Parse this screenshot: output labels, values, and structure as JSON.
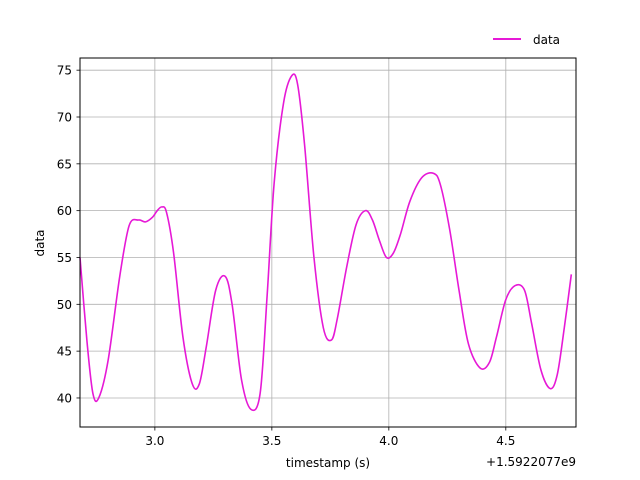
{
  "chart_data": {
    "type": "line",
    "xlabel": "timestamp (s)",
    "ylabel": "data",
    "x_offset_label": "+1.5922077e9",
    "xlim": [
      2.68,
      4.8
    ],
    "ylim": [
      36.9,
      76.3
    ],
    "x_ticks": [
      3.0,
      3.5,
      4.0,
      4.5
    ],
    "x_tick_labels": [
      "3.0",
      "3.5",
      "4.0",
      "4.5"
    ],
    "y_ticks": [
      40,
      45,
      50,
      55,
      60,
      65,
      70,
      75
    ],
    "y_tick_labels": [
      "40",
      "45",
      "50",
      "55",
      "60",
      "65",
      "70",
      "75"
    ],
    "grid": true,
    "legend_position": "top-right",
    "series": [
      {
        "name": "data",
        "color": "#e619d6",
        "x": [
          2.68,
          2.71,
          2.735,
          2.76,
          2.8,
          2.85,
          2.89,
          2.93,
          2.96,
          2.99,
          3.01,
          3.03,
          3.05,
          3.08,
          3.12,
          3.16,
          3.19,
          3.22,
          3.26,
          3.3,
          3.33,
          3.37,
          3.41,
          3.45,
          3.48,
          3.51,
          3.55,
          3.585,
          3.61,
          3.64,
          3.68,
          3.72,
          3.755,
          3.78,
          3.82,
          3.86,
          3.9,
          3.93,
          3.96,
          3.99,
          4.02,
          4.05,
          4.09,
          4.14,
          4.19,
          4.22,
          4.26,
          4.3,
          4.34,
          4.39,
          4.43,
          4.46,
          4.5,
          4.54,
          4.58,
          4.61,
          4.65,
          4.69,
          4.72,
          4.75,
          4.78
        ],
        "y": [
          55.0,
          46.0,
          40.5,
          40.0,
          44.0,
          53.0,
          58.4,
          59.0,
          58.8,
          59.3,
          60.0,
          60.4,
          59.8,
          55.5,
          46.5,
          41.5,
          41.5,
          45.5,
          51.5,
          53.0,
          50.0,
          42.0,
          38.8,
          40.5,
          51.0,
          63.0,
          71.5,
          74.4,
          73.5,
          67.0,
          55.0,
          47.5,
          46.2,
          48.5,
          54.0,
          58.5,
          60.0,
          59.0,
          56.8,
          55.0,
          55.5,
          57.5,
          61.0,
          63.5,
          64.0,
          62.8,
          58.0,
          51.5,
          45.8,
          43.2,
          43.8,
          46.5,
          50.5,
          52.0,
          51.5,
          48.0,
          43.0,
          41.0,
          42.5,
          47.5,
          53.2
        ]
      }
    ]
  },
  "legend": {
    "label": "data"
  }
}
